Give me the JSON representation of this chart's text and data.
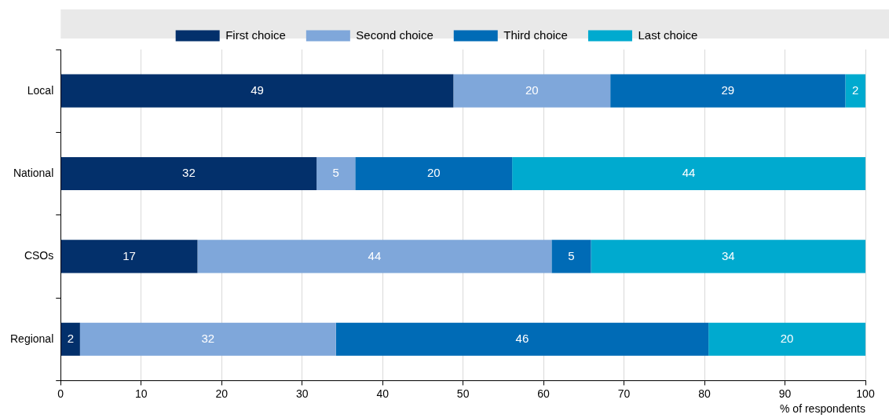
{
  "chart_data": {
    "type": "bar",
    "orientation": "horizontal",
    "stacked": true,
    "categories": [
      "Local",
      "National",
      "CSOs",
      "Regional"
    ],
    "series": [
      {
        "name": "First choice",
        "color": "#03306b",
        "values": [
          48.8,
          31.8,
          17.0,
          2.4
        ],
        "value_labels": [
          "49",
          "32",
          "17",
          "2"
        ]
      },
      {
        "name": "Second choice",
        "color": "#7fa7da",
        "values": [
          19.5,
          4.8,
          44.0,
          31.8
        ],
        "value_labels": [
          "20",
          "5",
          "44",
          "32"
        ]
      },
      {
        "name": "Third choice",
        "color": "#006bb6",
        "values": [
          29.2,
          19.5,
          4.9,
          46.3
        ],
        "value_labels": [
          "29",
          "20",
          "5",
          "46"
        ]
      },
      {
        "name": "Last choice",
        "color": "#00aacf",
        "values": [
          2.5,
          43.9,
          34.1,
          19.5
        ],
        "value_labels": [
          "2",
          "44",
          "34",
          "20"
        ]
      }
    ],
    "xlabel": "% of respondents",
    "xlim": [
      0,
      100
    ],
    "xticks": [
      0,
      10,
      20,
      30,
      40,
      50,
      60,
      70,
      80,
      90,
      100
    ],
    "grid": "x",
    "legend": "top"
  }
}
